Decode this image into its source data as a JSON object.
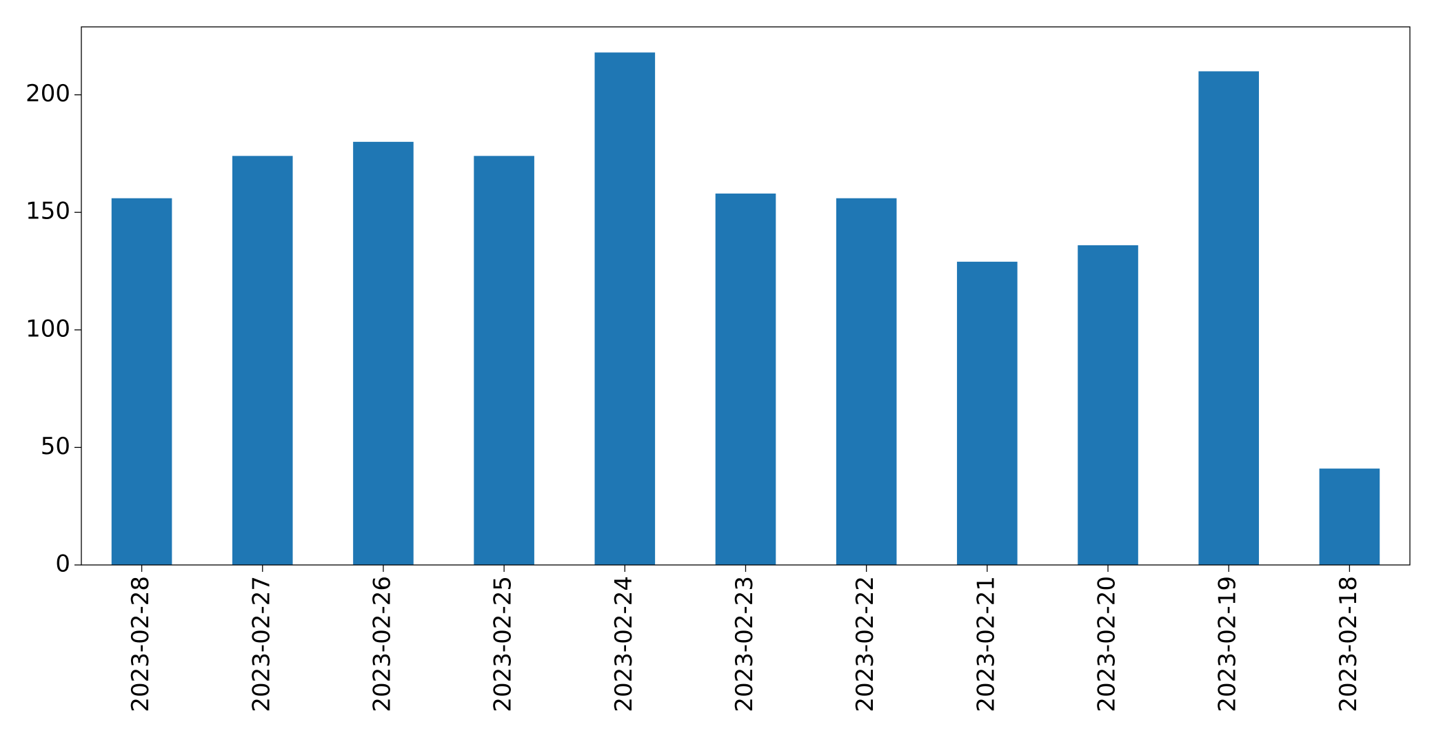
{
  "chart_data": {
    "type": "bar",
    "categories": [
      "2023-02-28",
      "2023-02-27",
      "2023-02-26",
      "2023-02-25",
      "2023-02-24",
      "2023-02-23",
      "2023-02-22",
      "2023-02-21",
      "2023-02-20",
      "2023-02-19",
      "2023-02-18"
    ],
    "values": [
      156,
      174,
      180,
      174,
      218,
      158,
      156,
      129,
      136,
      210,
      41
    ],
    "color": "#1f77b4",
    "ylim": [
      0,
      228.9
    ],
    "yticks": [
      0,
      50,
      100,
      150,
      200
    ],
    "grid": false
  }
}
